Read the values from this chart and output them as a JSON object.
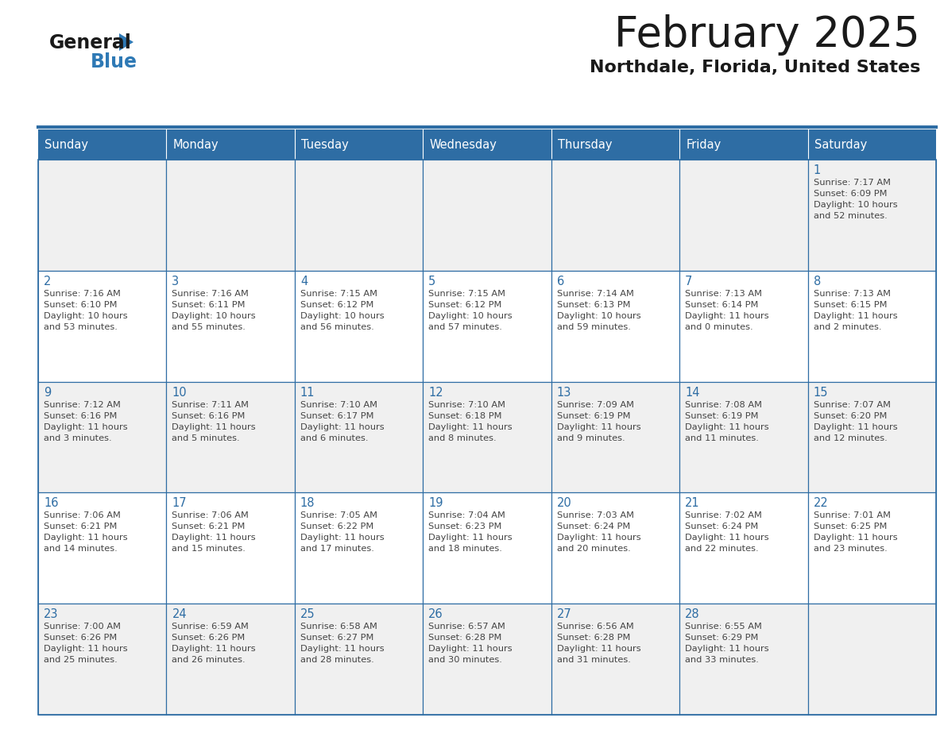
{
  "title": "February 2025",
  "subtitle": "Northdale, Florida, United States",
  "header_bg": "#2E6DA4",
  "header_text": "#FFFFFF",
  "day_names": [
    "Sunday",
    "Monday",
    "Tuesday",
    "Wednesday",
    "Thursday",
    "Friday",
    "Saturday"
  ],
  "cell_bg_odd": "#F0F0F0",
  "cell_bg_even": "#FFFFFF",
  "text_color": "#444444",
  "day_number_color": "#2E6DA4",
  "grid_color": "#2E6DA4",
  "logo_general_color": "#1A1A1A",
  "logo_blue_color": "#2E79B5",
  "days": [
    {
      "date": 1,
      "col": 6,
      "row": 0,
      "sunrise": "7:17 AM",
      "sunset": "6:09 PM",
      "daylight": "10 hours and 52 minutes."
    },
    {
      "date": 2,
      "col": 0,
      "row": 1,
      "sunrise": "7:16 AM",
      "sunset": "6:10 PM",
      "daylight": "10 hours and 53 minutes."
    },
    {
      "date": 3,
      "col": 1,
      "row": 1,
      "sunrise": "7:16 AM",
      "sunset": "6:11 PM",
      "daylight": "10 hours and 55 minutes."
    },
    {
      "date": 4,
      "col": 2,
      "row": 1,
      "sunrise": "7:15 AM",
      "sunset": "6:12 PM",
      "daylight": "10 hours and 56 minutes."
    },
    {
      "date": 5,
      "col": 3,
      "row": 1,
      "sunrise": "7:15 AM",
      "sunset": "6:12 PM",
      "daylight": "10 hours and 57 minutes."
    },
    {
      "date": 6,
      "col": 4,
      "row": 1,
      "sunrise": "7:14 AM",
      "sunset": "6:13 PM",
      "daylight": "10 hours and 59 minutes."
    },
    {
      "date": 7,
      "col": 5,
      "row": 1,
      "sunrise": "7:13 AM",
      "sunset": "6:14 PM",
      "daylight": "11 hours and 0 minutes."
    },
    {
      "date": 8,
      "col": 6,
      "row": 1,
      "sunrise": "7:13 AM",
      "sunset": "6:15 PM",
      "daylight": "11 hours and 2 minutes."
    },
    {
      "date": 9,
      "col": 0,
      "row": 2,
      "sunrise": "7:12 AM",
      "sunset": "6:16 PM",
      "daylight": "11 hours and 3 minutes."
    },
    {
      "date": 10,
      "col": 1,
      "row": 2,
      "sunrise": "7:11 AM",
      "sunset": "6:16 PM",
      "daylight": "11 hours and 5 minutes."
    },
    {
      "date": 11,
      "col": 2,
      "row": 2,
      "sunrise": "7:10 AM",
      "sunset": "6:17 PM",
      "daylight": "11 hours and 6 minutes."
    },
    {
      "date": 12,
      "col": 3,
      "row": 2,
      "sunrise": "7:10 AM",
      "sunset": "6:18 PM",
      "daylight": "11 hours and 8 minutes."
    },
    {
      "date": 13,
      "col": 4,
      "row": 2,
      "sunrise": "7:09 AM",
      "sunset": "6:19 PM",
      "daylight": "11 hours and 9 minutes."
    },
    {
      "date": 14,
      "col": 5,
      "row": 2,
      "sunrise": "7:08 AM",
      "sunset": "6:19 PM",
      "daylight": "11 hours and 11 minutes."
    },
    {
      "date": 15,
      "col": 6,
      "row": 2,
      "sunrise": "7:07 AM",
      "sunset": "6:20 PM",
      "daylight": "11 hours and 12 minutes."
    },
    {
      "date": 16,
      "col": 0,
      "row": 3,
      "sunrise": "7:06 AM",
      "sunset": "6:21 PM",
      "daylight": "11 hours and 14 minutes."
    },
    {
      "date": 17,
      "col": 1,
      "row": 3,
      "sunrise": "7:06 AM",
      "sunset": "6:21 PM",
      "daylight": "11 hours and 15 minutes."
    },
    {
      "date": 18,
      "col": 2,
      "row": 3,
      "sunrise": "7:05 AM",
      "sunset": "6:22 PM",
      "daylight": "11 hours and 17 minutes."
    },
    {
      "date": 19,
      "col": 3,
      "row": 3,
      "sunrise": "7:04 AM",
      "sunset": "6:23 PM",
      "daylight": "11 hours and 18 minutes."
    },
    {
      "date": 20,
      "col": 4,
      "row": 3,
      "sunrise": "7:03 AM",
      "sunset": "6:24 PM",
      "daylight": "11 hours and 20 minutes."
    },
    {
      "date": 21,
      "col": 5,
      "row": 3,
      "sunrise": "7:02 AM",
      "sunset": "6:24 PM",
      "daylight": "11 hours and 22 minutes."
    },
    {
      "date": 22,
      "col": 6,
      "row": 3,
      "sunrise": "7:01 AM",
      "sunset": "6:25 PM",
      "daylight": "11 hours and 23 minutes."
    },
    {
      "date": 23,
      "col": 0,
      "row": 4,
      "sunrise": "7:00 AM",
      "sunset": "6:26 PM",
      "daylight": "11 hours and 25 minutes."
    },
    {
      "date": 24,
      "col": 1,
      "row": 4,
      "sunrise": "6:59 AM",
      "sunset": "6:26 PM",
      "daylight": "11 hours and 26 minutes."
    },
    {
      "date": 25,
      "col": 2,
      "row": 4,
      "sunrise": "6:58 AM",
      "sunset": "6:27 PM",
      "daylight": "11 hours and 28 minutes."
    },
    {
      "date": 26,
      "col": 3,
      "row": 4,
      "sunrise": "6:57 AM",
      "sunset": "6:28 PM",
      "daylight": "11 hours and 30 minutes."
    },
    {
      "date": 27,
      "col": 4,
      "row": 4,
      "sunrise": "6:56 AM",
      "sunset": "6:28 PM",
      "daylight": "11 hours and 31 minutes."
    },
    {
      "date": 28,
      "col": 5,
      "row": 4,
      "sunrise": "6:55 AM",
      "sunset": "6:29 PM",
      "daylight": "11 hours and 33 minutes."
    }
  ]
}
